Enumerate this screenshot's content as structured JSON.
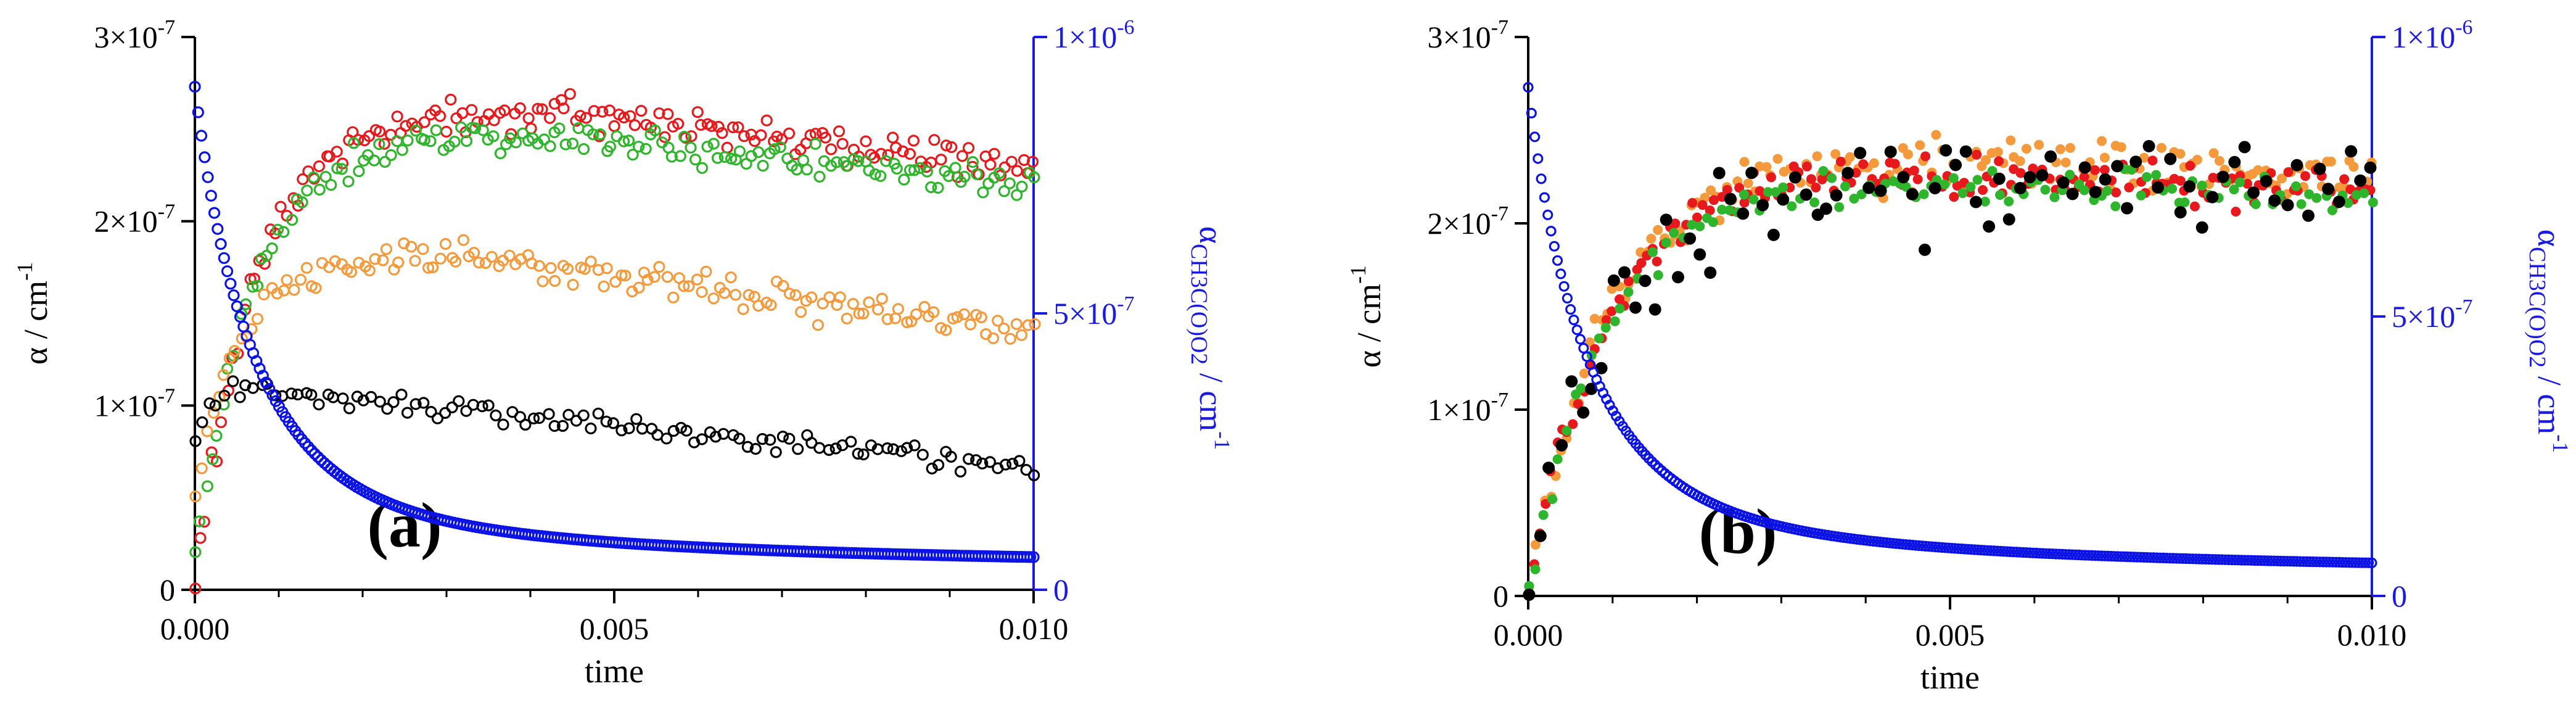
{
  "colors": {
    "red": "#e8191c",
    "green": "#2fb52c",
    "orange": "#f59a3c",
    "black": "#000000",
    "blue": "#0b12e6",
    "axis": "#000000",
    "right_axis": "#1a1ae0"
  },
  "chart_data": [
    {
      "panel": "a",
      "type": "scatter",
      "marker_style": "hollow",
      "panel_label": "(a)",
      "xlabel": "time",
      "ylabel": "α / cm",
      "ylabel_sup": "-1",
      "y2label": "α",
      "y2label_sub": "CH3C(O)O2",
      "y2label_unit": " / cm",
      "y2label_sup": "-1",
      "xlim": [
        0,
        0.01
      ],
      "ylim": [
        0,
        3e-07
      ],
      "y2lim": [
        0,
        1e-06
      ],
      "x_ticks": [
        {
          "value": 0,
          "label": "0.000"
        },
        {
          "value": 0.005,
          "label": "0.005"
        },
        {
          "value": 0.01,
          "label": "0.010"
        }
      ],
      "y_ticks": [
        {
          "value": 0,
          "label": "0"
        },
        {
          "value": 1e-07,
          "label": "1×10",
          "sup": "-7"
        },
        {
          "value": 2e-07,
          "label": "2×10",
          "sup": "-7"
        },
        {
          "value": 3e-07,
          "label": "3×10",
          "sup": "-7"
        }
      ],
      "y2_ticks": [
        {
          "value": 0,
          "label": "0"
        },
        {
          "value": 5e-07,
          "label": "5×10",
          "sup": "-7"
        },
        {
          "value": 1e-06,
          "label": "1×10",
          "sup": "-6"
        }
      ],
      "series": [
        {
          "name": "red",
          "axis": "left",
          "model": {
            "kind": "rise",
            "a0": 0.0,
            "plateau": 2.6,
            "tau": 0.0007,
            "slope": -5,
            "peak_t": 0.004
          },
          "noise": 0.08,
          "count": 155
        },
        {
          "name": "green",
          "axis": "left",
          "model": {
            "kind": "rise",
            "a0": 0.2,
            "plateau": 2.48,
            "tau": 0.0007,
            "slope": -4.5,
            "peak_t": 0.004
          },
          "noise": 0.07,
          "count": 150
        },
        {
          "name": "orange",
          "axis": "left",
          "model": {
            "kind": "rise",
            "a0": 0.5,
            "plateau": 1.8,
            "tau": 0.0005,
            "slope": -5.5,
            "peak_t": 0.003
          },
          "noise": 0.07,
          "count": 145
        },
        {
          "name": "black",
          "axis": "left",
          "model": {
            "kind": "risefall",
            "a0": 0.8,
            "plateau": 1.1,
            "tau": 0.0002,
            "slope": -5.0,
            "peak_t": 0.0004
          },
          "noise": 0.05,
          "count": 115
        },
        {
          "name": "blue",
          "axis": "right",
          "model": {
            "kind": "decay",
            "a0": 9.1,
            "tau": 0.0008,
            "floor": 0.3,
            "c": 1.25
          },
          "noise": 0.0,
          "count": 260
        }
      ]
    },
    {
      "panel": "b",
      "type": "scatter",
      "marker_style": "filled",
      "panel_label": "(b)",
      "xlabel": "time",
      "ylabel": "α / cm",
      "ylabel_sup": "-1",
      "y2label": "α",
      "y2label_sub": "CH3C(O)O2",
      "y2label_unit": " / cm",
      "y2label_sup": "-1",
      "xlim": [
        0,
        0.01
      ],
      "ylim": [
        0,
        3e-07
      ],
      "y2lim": [
        0,
        1e-06
      ],
      "x_ticks": [
        {
          "value": 0,
          "label": "0.000"
        },
        {
          "value": 0.005,
          "label": "0.005"
        },
        {
          "value": 0.01,
          "label": "0.010"
        }
      ],
      "y_ticks": [
        {
          "value": 0,
          "label": "0"
        },
        {
          "value": 1e-07,
          "label": "1×10",
          "sup": "-7"
        },
        {
          "value": 2e-07,
          "label": "2×10",
          "sup": "-7"
        },
        {
          "value": 3e-07,
          "label": "3×10",
          "sup": "-7"
        }
      ],
      "y2_ticks": [
        {
          "value": 0,
          "label": "0"
        },
        {
          "value": 5e-07,
          "label": "5×10",
          "sup": "-7"
        },
        {
          "value": 1e-06,
          "label": "1×10",
          "sup": "-6"
        }
      ],
      "series": [
        {
          "name": "orange",
          "axis": "left",
          "model": {
            "kind": "rise",
            "a0": 0.0,
            "plateau": 2.35,
            "tau": 0.0009,
            "slope": -1.5,
            "peak_t": 0.003
          },
          "noise": 0.12,
          "count": 150
        },
        {
          "name": "red",
          "axis": "left",
          "model": {
            "kind": "rise",
            "a0": 0.0,
            "plateau": 2.3,
            "tau": 0.0009,
            "slope": -2.0,
            "peak_t": 0.003
          },
          "noise": 0.09,
          "count": 150
        },
        {
          "name": "green",
          "axis": "left",
          "model": {
            "kind": "rise",
            "a0": 0.0,
            "plateau": 2.22,
            "tau": 0.0009,
            "slope": -1.0,
            "peak_t": 0.003
          },
          "noise": 0.08,
          "count": 110
        },
        {
          "name": "black",
          "axis": "left",
          "model": {
            "kind": "rise",
            "a0": 0.0,
            "plateau": 2.25,
            "tau": 0.0009,
            "slope": -0.5,
            "peak_t": 0.003
          },
          "noise": 0.22,
          "count": 80
        },
        {
          "name": "blue",
          "axis": "right",
          "model": {
            "kind": "decay",
            "a0": 9.1,
            "tau": 0.0008,
            "floor": 0.3,
            "c": 1.25
          },
          "noise": 0.0,
          "count": 260
        }
      ]
    }
  ]
}
